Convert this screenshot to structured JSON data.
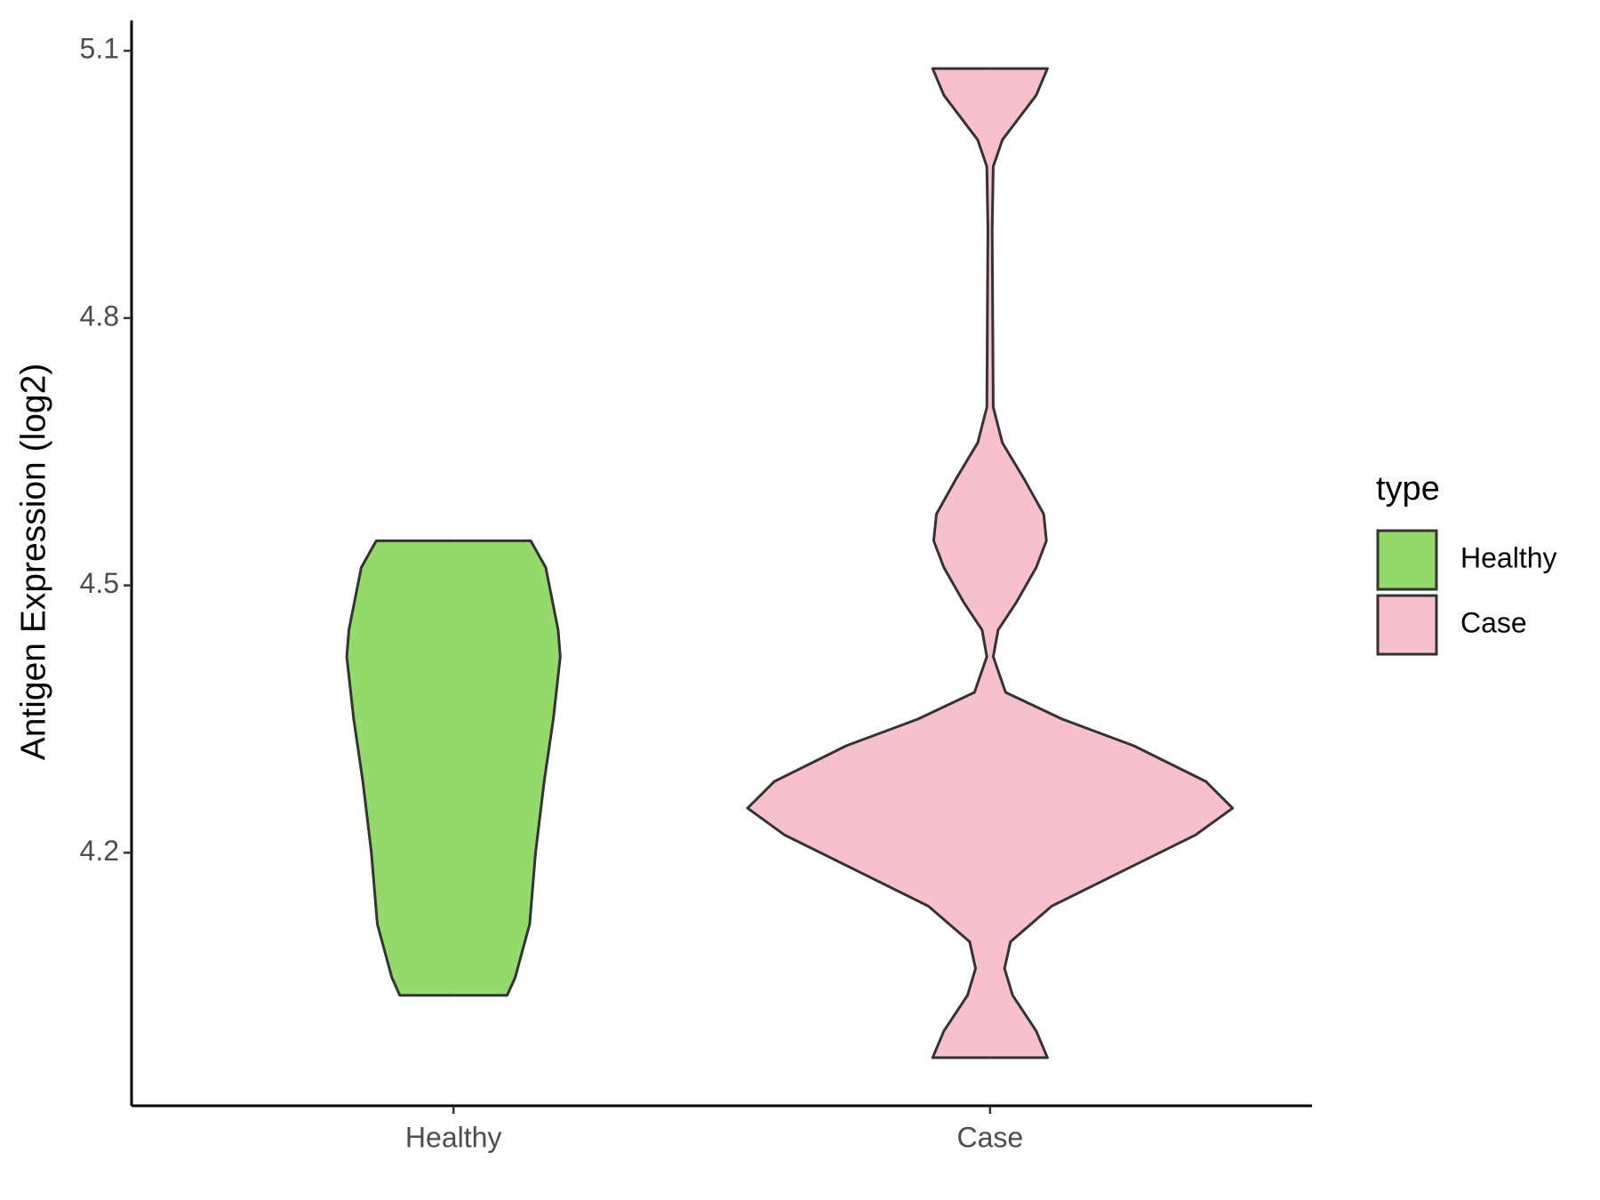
{
  "chart_data": {
    "type": "violin",
    "y_label": "Antigen Expression (log2)",
    "categories": [
      "Healthy",
      "Case"
    ],
    "legend_title": "type",
    "legend_position": "right",
    "ylim": [
      3.916,
      5.134
    ],
    "yticks": [
      4.2,
      4.5,
      4.8,
      5.1
    ],
    "series": [
      {
        "name": "Healthy",
        "color": "#93da6a",
        "y": [
          4.55,
          4.55,
          4.52,
          4.45,
          4.42,
          4.35,
          4.28,
          4.2,
          4.12,
          4.06,
          4.04,
          4.04
        ],
        "width": [
          0,
          0.144,
          0.172,
          0.195,
          0.199,
          0.186,
          0.169,
          0.153,
          0.142,
          0.115,
          0.1,
          0
        ]
      },
      {
        "name": "Case",
        "color": "#f8c0cb",
        "y": [
          5.08,
          5.08,
          5.05,
          5.0,
          4.97,
          4.9,
          4.7,
          4.66,
          4.62,
          4.58,
          4.55,
          4.52,
          4.48,
          4.45,
          4.42,
          4.38,
          4.35,
          4.32,
          4.28,
          4.25,
          4.22,
          4.18,
          4.14,
          4.1,
          4.07,
          4.04,
          4.0,
          3.97,
          3.97
        ],
        "width": [
          0,
          0.107,
          0.086,
          0.023,
          0.006,
          0.004,
          0.006,
          0.023,
          0.063,
          0.1,
          0.105,
          0.086,
          0.048,
          0.015,
          0.006,
          0.029,
          0.134,
          0.268,
          0.402,
          0.452,
          0.383,
          0.249,
          0.115,
          0.038,
          0.027,
          0.042,
          0.086,
          0.107,
          0
        ]
      }
    ]
  }
}
